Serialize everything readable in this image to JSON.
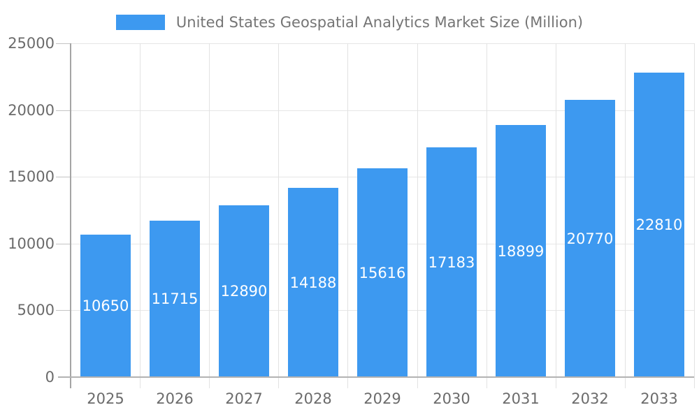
{
  "chart_data": {
    "type": "bar",
    "title": "United States Geospatial Analytics Market Size (Million)",
    "categories": [
      "2025",
      "2026",
      "2027",
      "2028",
      "2029",
      "2030",
      "2031",
      "2032",
      "2033"
    ],
    "series": [
      {
        "name": "United States Geospatial Analytics Market Size (Million)",
        "values": [
          10650,
          11715,
          12890,
          14188,
          15616,
          17183,
          18899,
          20770,
          22810
        ]
      }
    ],
    "bar_value_labels": [
      "10650",
      "11715",
      "12890",
      "14188",
      "15616",
      "17183",
      "18899",
      "20770",
      "22810"
    ],
    "xlabel": "",
    "ylabel": "",
    "ylim": [
      0,
      25000
    ],
    "ytick_interval": 5000,
    "ytick_labels": [
      "0",
      "5000",
      "10000",
      "15000",
      "20000",
      "25000"
    ],
    "grid": true,
    "legend_position": "top"
  },
  "colors": {
    "bar": "#3D99F0",
    "bar_label_text": "#FFFFFF",
    "title_text": "#757575",
    "axis_text": "#6B6B6B",
    "grid_h": "#E6E6E6",
    "grid_v": "#E2E2E2",
    "tick_stub": "#C4C4C4",
    "axis_line": "#A5A5A5",
    "baseline": "#B3B3B3",
    "background": "#FFFFFF"
  }
}
